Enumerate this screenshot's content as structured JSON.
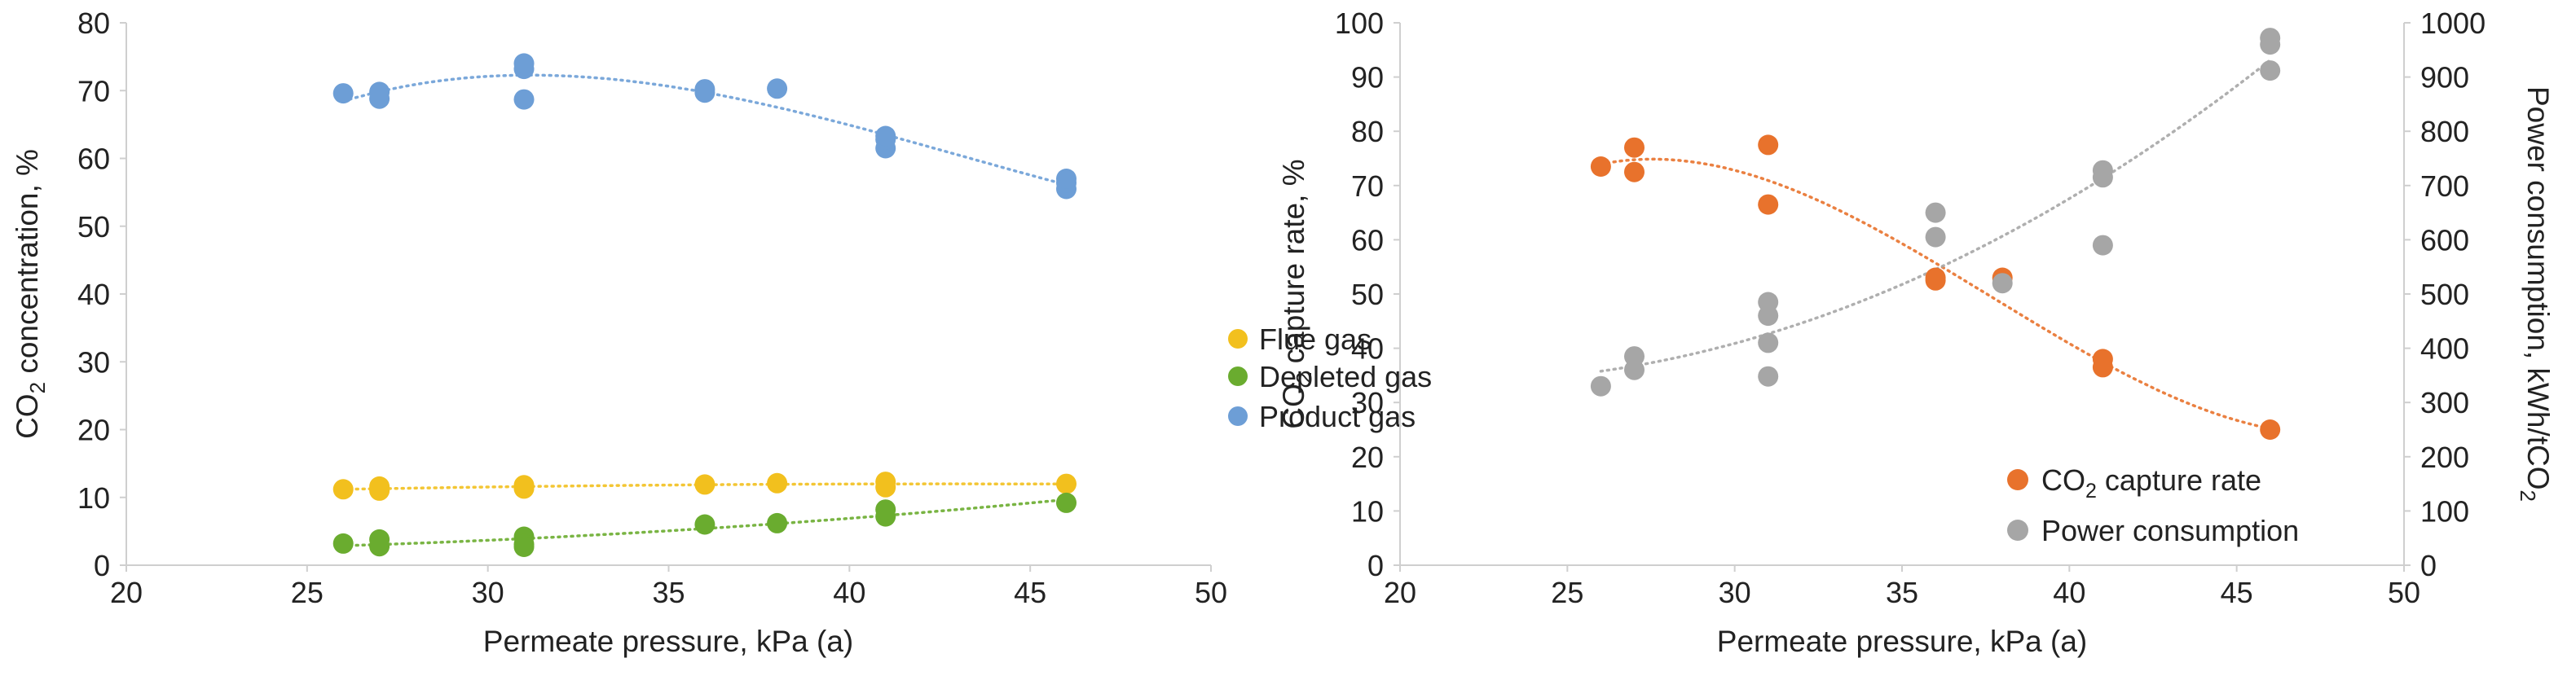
{
  "chart_data": [
    {
      "type": "scatter",
      "xlabel": "Permeate pressure, kPa (a)",
      "ylabel": "CO2 concentration, %",
      "ylabel_main": "CO",
      "ylabel_sub": "2",
      "ylabel_tail": " concentration, %",
      "xlim": [
        20,
        50
      ],
      "ylim": [
        0,
        80
      ],
      "xticks": [
        "20",
        "25",
        "30",
        "35",
        "40",
        "45",
        "50"
      ],
      "yticks": [
        "0",
        "10",
        "20",
        "30",
        "40",
        "50",
        "60",
        "70",
        "80"
      ],
      "grid": false,
      "legend_position": "right-center",
      "series": [
        {
          "name": "Flue gas",
          "color": "#f2c01e",
          "trendline": "dotted",
          "x": [
            26,
            27,
            27,
            31,
            31,
            36,
            38,
            41,
            41,
            46
          ],
          "y": [
            11.2,
            11.6,
            11.0,
            11.8,
            11.3,
            11.9,
            12.1,
            11.5,
            12.3,
            12.0
          ]
        },
        {
          "name": "Depleted gas",
          "color": "#6aac2f",
          "trendline": "dotted",
          "x": [
            26,
            27,
            27,
            31,
            31,
            31,
            36,
            38,
            41,
            41,
            46
          ],
          "y": [
            3.2,
            3.8,
            2.8,
            4.2,
            3.1,
            2.7,
            6.0,
            6.2,
            7.2,
            8.2,
            9.2
          ]
        },
        {
          "name": "Product gas",
          "color": "#6d9ed6",
          "trendline": "dotted",
          "x": [
            26,
            27,
            27,
            31,
            31,
            31,
            36,
            36,
            38,
            41,
            41,
            41,
            46,
            46,
            46
          ],
          "y": [
            69.6,
            68.8,
            69.8,
            73.2,
            74.0,
            68.7,
            70.2,
            69.7,
            70.3,
            61.5,
            62.8,
            63.3,
            55.5,
            56.4,
            57.0
          ]
        }
      ]
    },
    {
      "type": "scatter",
      "xlabel": "Permeate pressure, kPa (a)",
      "ylabel_left": "CO2 capture rate, %",
      "ylabel_left_main": "CO",
      "ylabel_left_sub": "2",
      "ylabel_left_tail": " capture rate, %",
      "ylabel_right": "Power consumption, kWh/tCO2",
      "ylabel_right_main": "Power consumption, kWh/tCO",
      "ylabel_right_sub": "2",
      "xlim": [
        20,
        50
      ],
      "ylim_left": [
        0,
        100
      ],
      "ylim_right": [
        0,
        1000
      ],
      "xticks": [
        "20",
        "25",
        "30",
        "35",
        "40",
        "45",
        "50"
      ],
      "yticks_left": [
        "0",
        "10",
        "20",
        "30",
        "40",
        "50",
        "60",
        "70",
        "80",
        "90",
        "100"
      ],
      "yticks_right": [
        "0",
        "100",
        "200",
        "300",
        "400",
        "500",
        "600",
        "700",
        "800",
        "900",
        "1000"
      ],
      "grid": false,
      "legend_position": "bottom-right",
      "series": [
        {
          "name": "CO2 capture rate",
          "label_main": "CO",
          "label_sub": "2",
          "label_tail": " capture rate",
          "axis": "left",
          "color": "#e8722c",
          "trendline": "dotted",
          "x": [
            26,
            27,
            27,
            31,
            31,
            36,
            36,
            38,
            41,
            41,
            46
          ],
          "y": [
            73.5,
            77.0,
            72.5,
            77.5,
            66.5,
            53.0,
            52.5,
            53.0,
            38.0,
            36.5,
            25.0
          ]
        },
        {
          "name": "Power consumption",
          "label_main": "Power consumption",
          "label_sub": "",
          "label_tail": "",
          "axis": "right",
          "color": "#a6a6a6",
          "trendline": "dotted",
          "x": [
            26,
            27,
            27,
            31,
            31,
            31,
            31,
            36,
            36,
            38,
            41,
            41,
            41,
            46,
            46,
            46
          ],
          "y": [
            330,
            385,
            360,
            485,
            460,
            410,
            348,
            650,
            605,
            520,
            728,
            715,
            590,
            972,
            960,
            912
          ]
        }
      ]
    }
  ]
}
